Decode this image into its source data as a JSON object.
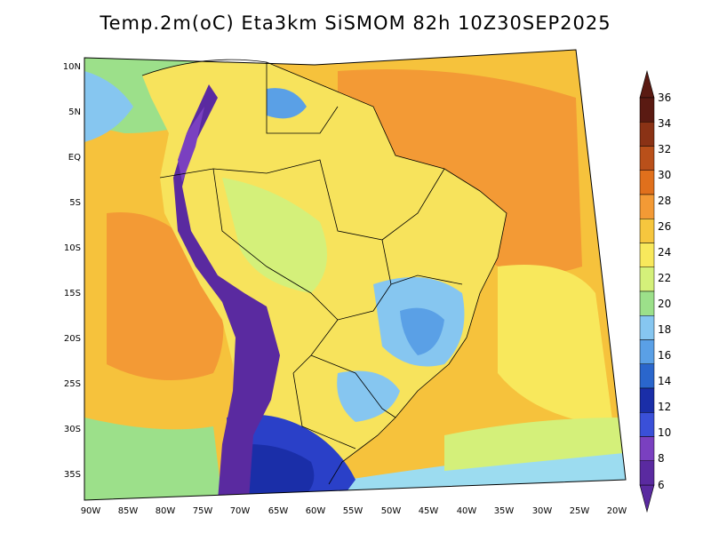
{
  "title": "Temp.2m(oC) Eta3km SiSMOM 82h 10Z30SEP2025",
  "lat_labels": [
    "10N",
    "5N",
    "EQ",
    "5S",
    "10S",
    "15S",
    "20S",
    "25S",
    "30S",
    "35S"
  ],
  "lon_labels": [
    "90W",
    "85W",
    "80W",
    "75W",
    "70W",
    "65W",
    "60W",
    "55W",
    "50W",
    "45W",
    "40W",
    "35W",
    "30W",
    "25W",
    "20W"
  ],
  "colorbar": {
    "labels": [
      "36",
      "34",
      "32",
      "30",
      "28",
      "26",
      "24",
      "22",
      "20",
      "18",
      "16",
      "14",
      "12",
      "10",
      "8",
      "6"
    ],
    "colors": [
      "#5a1a12",
      "#8a3215",
      "#b9501a",
      "#e0701c",
      "#f39a35",
      "#f6c63e",
      "#f8e85c",
      "#d4f07a",
      "#9ce08a",
      "#86c6f0",
      "#5aa0e6",
      "#2a66cc",
      "#1a2ea8",
      "#3a50d8",
      "#7a40c0",
      "#5a2aa0"
    ]
  },
  "map": {
    "ocean_color": "#f6c23c",
    "warm_ocean_color": "#f39a35",
    "land_color": "#f7e35c",
    "cool_land_color": "#d4f07a",
    "andes_color": "#5a2aa0",
    "south_cold_color": "#2a40c8",
    "southern_ocean_color": "#9cdcf0"
  }
}
